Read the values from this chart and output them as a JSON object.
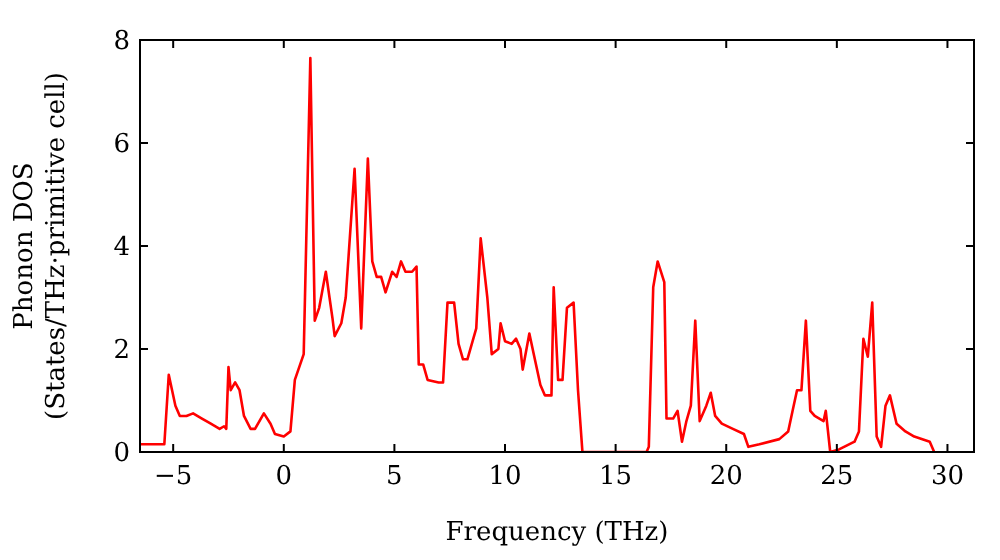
{
  "chart_data": {
    "type": "line",
    "xlabel": "Frequency (THz)",
    "ylabel": "Phonon DOS\n(States/THz·primitive cell)",
    "xlim": [
      -6.5,
      31.2
    ],
    "ylim": [
      0,
      8
    ],
    "xticks": [
      -5,
      0,
      5,
      10,
      15,
      20,
      25,
      30
    ],
    "yticks": [
      0,
      2,
      4,
      6,
      8
    ],
    "grid": false,
    "marker": "none",
    "line_style": "solid",
    "series": [
      {
        "color": "#ff0000",
        "x": [
          -6.5,
          -5.4,
          -5.2,
          -4.9,
          -4.7,
          -4.4,
          -4.1,
          -3.7,
          -3.3,
          -2.9,
          -2.7,
          -2.6,
          -2.5,
          -2.4,
          -2.2,
          -2.0,
          -1.8,
          -1.5,
          -1.3,
          -0.9,
          -0.6,
          -0.4,
          0,
          0.3,
          0.5,
          0.9,
          1.2,
          1.4,
          1.6,
          1.9,
          2.2,
          2.3,
          2.6,
          2.8,
          3.2,
          3.5,
          3.8,
          4.0,
          4.2,
          4.4,
          4.6,
          4.9,
          5.1,
          5.3,
          5.5,
          5.8,
          6.0,
          6.1,
          6.3,
          6.5,
          7.0,
          7.2,
          7.4,
          7.7,
          7.9,
          8.1,
          8.3,
          8.7,
          8.9,
          9.2,
          9.4,
          9.7,
          9.8,
          10.0,
          10.3,
          10.5,
          10.7,
          10.8,
          11.1,
          11.3,
          11.6,
          11.8,
          12.1,
          12.2,
          12.4,
          12.6,
          12.8,
          13.1,
          13.3,
          13.5,
          16.4,
          16.5,
          16.7,
          16.9,
          17.2,
          17.3,
          17.6,
          17.8,
          18.0,
          18.2,
          18.4,
          18.6,
          18.8,
          19.1,
          19.3,
          19.5,
          19.8,
          20.3,
          20.8,
          21.0,
          21.5,
          22.4,
          22.8,
          23.0,
          23.2,
          23.4,
          23.6,
          23.8,
          24.0,
          24.4,
          24.5,
          24.7,
          25.1,
          25.8,
          26.0,
          26.2,
          26.4,
          26.6,
          26.8,
          27.0,
          27.2,
          27.4,
          27.7,
          28.1,
          28.5,
          29.2,
          29.4
        ],
        "values": [
          0.15,
          0.15,
          1.5,
          0.9,
          0.7,
          0.7,
          0.75,
          0.65,
          0.55,
          0.45,
          0.5,
          0.45,
          1.65,
          1.2,
          1.35,
          1.2,
          0.7,
          0.45,
          0.45,
          0.75,
          0.55,
          0.35,
          0.3,
          0.4,
          1.4,
          1.9,
          7.65,
          2.55,
          2.8,
          3.5,
          2.6,
          2.25,
          2.5,
          3.0,
          5.5,
          2.4,
          5.7,
          3.7,
          3.4,
          3.4,
          3.1,
          3.5,
          3.4,
          3.7,
          3.5,
          3.5,
          3.6,
          1.7,
          1.7,
          1.4,
          1.35,
          1.35,
          2.9,
          2.9,
          2.1,
          1.8,
          1.8,
          2.4,
          4.15,
          3.0,
          1.9,
          2.0,
          2.5,
          2.15,
          2.1,
          2.2,
          2.0,
          1.6,
          2.3,
          1.9,
          1.3,
          1.1,
          1.1,
          3.2,
          1.4,
          1.4,
          2.8,
          2.9,
          1.2,
          0,
          0,
          0.1,
          3.2,
          3.7,
          3.3,
          0.65,
          0.65,
          0.8,
          0.2,
          0.6,
          0.9,
          2.55,
          0.6,
          0.9,
          1.15,
          0.7,
          0.55,
          0.45,
          0.35,
          0.1,
          0.15,
          0.25,
          0.4,
          0.8,
          1.2,
          1.2,
          2.55,
          0.8,
          0.7,
          0.6,
          0.8,
          0,
          0.05,
          0.2,
          0.4,
          2.2,
          1.85,
          2.9,
          0.3,
          0.1,
          0.9,
          1.1,
          0.55,
          0.4,
          0.3,
          0.2,
          0
        ]
      }
    ]
  }
}
